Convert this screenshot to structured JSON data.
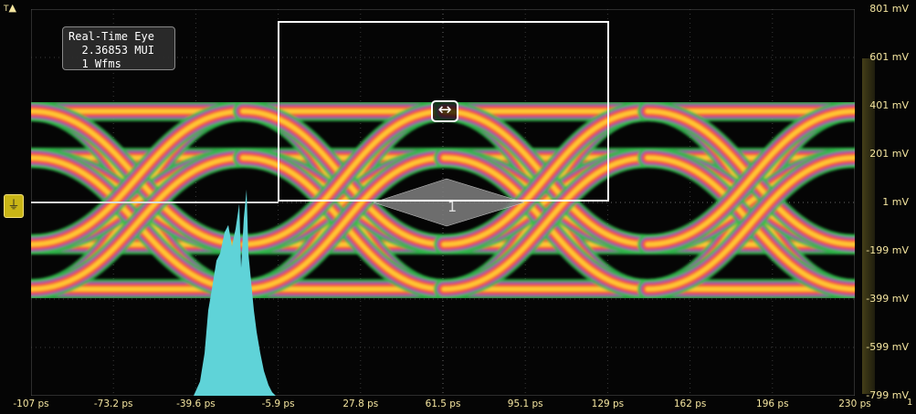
{
  "overlay": {
    "lines": [
      "Real-Time Eye",
      "  2.36853 MUI",
      "  1 Wfms"
    ]
  },
  "trigger_label": "T",
  "cursor_marker_label": "1",
  "edge_label": "1",
  "zoom_icon": "double-arrow-icon",
  "reference_icon": "ground-reference-icon",
  "y_axis": {
    "labels": [
      "801 mV",
      "601 mV",
      "401 mV",
      "201 mV",
      "1 mV",
      "-199 mV",
      "-399 mV",
      "-599 mV",
      "-799 mV"
    ],
    "range": [
      -799,
      801
    ],
    "unit": "mV"
  },
  "x_axis": {
    "labels": [
      "-107 ps",
      "-73.2 ps",
      "-39.6 ps",
      "-5.9 ps",
      "27.8 ps",
      "61.5 ps",
      "95.1 ps",
      "129 ps",
      "162 ps",
      "196 ps",
      "230 ps"
    ],
    "range": [
      -107,
      230
    ],
    "unit": "ps"
  },
  "colors": {
    "label": "#f5e6a0",
    "histogram": "#5fd3d8",
    "eye_hot": "#ffcc33",
    "eye_mid": "#ff5a2a",
    "eye_edge": "#2ebc4a",
    "eye_cool": "#b040c0"
  }
}
